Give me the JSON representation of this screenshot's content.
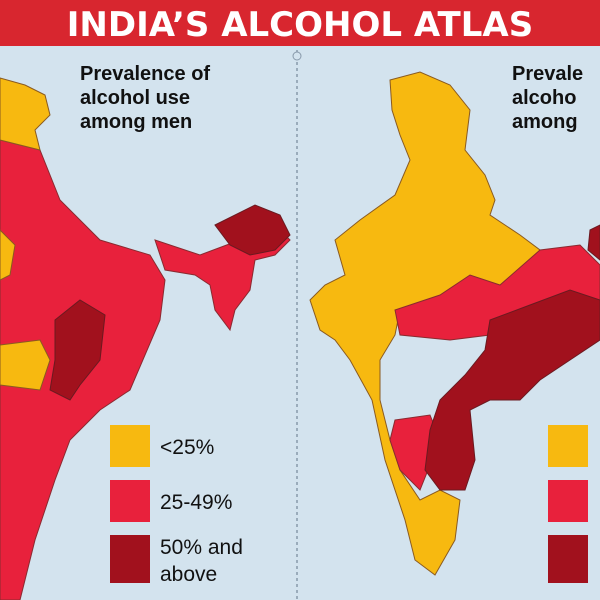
{
  "header": {
    "title": "INDIA’S ALCOHOL ATLAS"
  },
  "left_panel": {
    "subtitle_lines": [
      "Prevalence of",
      "alcohol use",
      "among men"
    ],
    "legend": [
      "<25%",
      "25-49%",
      "50% and",
      "above"
    ]
  },
  "right_panel": {
    "subtitle_lines": [
      "Prevale",
      "alcoho",
      "among"
    ]
  }
}
